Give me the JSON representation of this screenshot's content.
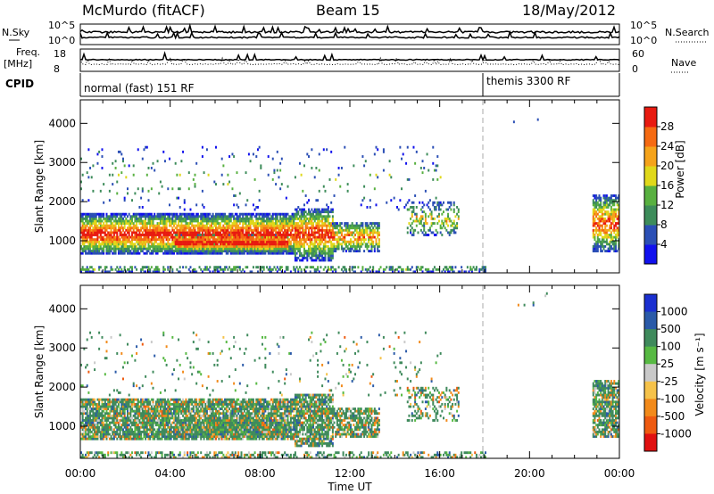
{
  "header": {
    "station": "McMurdo (fitACF)",
    "beam": "Beam 15",
    "date": "18/May/2012"
  },
  "noise_panel": {
    "left_label": "N.Sky",
    "right_label": "N.Search",
    "left_ticks": [
      "10^5",
      "10^0"
    ],
    "right_ticks": [
      "10^5",
      "10^0"
    ]
  },
  "freq_panel": {
    "left_label_1": "Freq.",
    "left_label_2": "[MHz]",
    "right_label": "Nave",
    "left_ticks": [
      "18",
      "8"
    ],
    "right_ticks": [
      "60",
      "0"
    ]
  },
  "cpid_panel": {
    "label": "CPID",
    "modes": [
      {
        "name": "normal (fast) 151 RF",
        "start_hour": 0
      },
      {
        "name": "themis 3300 RF",
        "start_hour": 18
      }
    ]
  },
  "chart_data": [
    {
      "type": "heatmap",
      "name": "power",
      "ylabel": "Slant Range [km]",
      "xlabel": "",
      "xlim": [
        0,
        24
      ],
      "ylim": [
        180,
        4600
      ],
      "yticks": [
        "1000",
        "2000",
        "3000",
        "4000"
      ],
      "colorbar": {
        "label": "Power [dB]",
        "ticks": [
          "4",
          "8",
          "12",
          "16",
          "20",
          "24",
          "28"
        ],
        "colors": [
          "#1111ee",
          "#2b4fb5",
          "#3d8c5a",
          "#58b040",
          "#e0d81a",
          "#f5a31a",
          "#f56a12",
          "#e81a10"
        ]
      }
    },
    {
      "type": "heatmap",
      "name": "velocity",
      "ylabel": "Slant Range [km]",
      "xlabel": "Time UT",
      "xlim": [
        0,
        24
      ],
      "ylim": [
        180,
        4600
      ],
      "xticks": [
        "00:00",
        "04:00",
        "08:00",
        "12:00",
        "16:00",
        "20:00",
        "00:00"
      ],
      "yticks": [
        "1000",
        "2000",
        "3000",
        "4000"
      ],
      "colorbar": {
        "label": "Velocity [m s⁻¹]",
        "ticks": [
          "1000",
          "500",
          "100",
          "25",
          "-25",
          "-100",
          "-500",
          "-1000"
        ],
        "colors": [
          "#1a2fd0",
          "#2a5aa8",
          "#3f8a5c",
          "#57b943",
          "#c9c9c9",
          "#f5c24a",
          "#f28a1a",
          "#ee5a10",
          "#e01010"
        ]
      }
    }
  ]
}
